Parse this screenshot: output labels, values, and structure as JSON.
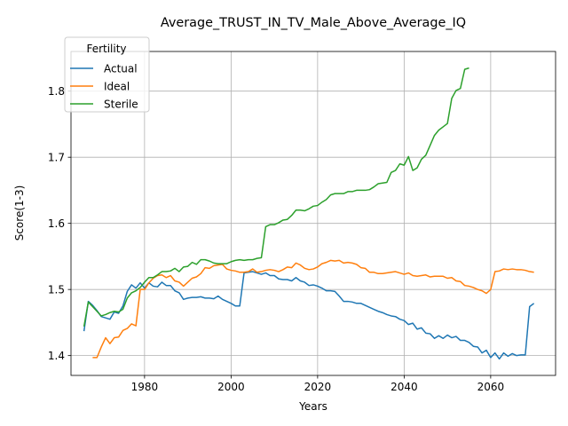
{
  "chart_data": {
    "type": "line",
    "title": "Average_TRUST_IN_TV_Male_Above_Average_IQ",
    "xlabel": "Years",
    "ylabel": "Score(1-3)",
    "xlim": [
      1963,
      2075
    ],
    "ylim": [
      1.37,
      1.86
    ],
    "x_ticks": [
      1980,
      2000,
      2020,
      2040,
      2060
    ],
    "y_ticks": [
      1.4,
      1.5,
      1.6,
      1.7,
      1.8
    ],
    "grid": true,
    "legend": {
      "title": "Fertility",
      "placement": "top-left"
    },
    "series": [
      {
        "name": "Actual",
        "color": "#1f77b4",
        "points": [
          [
            1966,
            1.437
          ],
          [
            1967,
            1.482
          ],
          [
            1968,
            1.476
          ],
          [
            1969,
            1.468
          ],
          [
            1970,
            1.459
          ],
          [
            1971,
            1.457
          ],
          [
            1972,
            1.455
          ],
          [
            1973,
            1.466
          ],
          [
            1974,
            1.464
          ],
          [
            1975,
            1.475
          ],
          [
            1976,
            1.497
          ],
          [
            1977,
            1.507
          ],
          [
            1978,
            1.502
          ],
          [
            1979,
            1.51
          ],
          [
            1980,
            1.502
          ],
          [
            1981,
            1.51
          ],
          [
            1982,
            1.505
          ],
          [
            1983,
            1.504
          ],
          [
            1984,
            1.511
          ],
          [
            1985,
            1.506
          ],
          [
            1986,
            1.506
          ],
          [
            1987,
            1.498
          ],
          [
            1988,
            1.495
          ],
          [
            1989,
            1.485
          ],
          [
            1990,
            1.487
          ],
          [
            1991,
            1.488
          ],
          [
            1992,
            1.488
          ],
          [
            1993,
            1.489
          ],
          [
            1994,
            1.487
          ],
          [
            1995,
            1.487
          ],
          [
            1996,
            1.486
          ],
          [
            1997,
            1.49
          ],
          [
            1998,
            1.485
          ],
          [
            1999,
            1.482
          ],
          [
            2000,
            1.479
          ],
          [
            2001,
            1.475
          ],
          [
            2002,
            1.475
          ],
          [
            2003,
            1.525
          ],
          [
            2004,
            1.526
          ],
          [
            2005,
            1.527
          ],
          [
            2006,
            1.525
          ],
          [
            2007,
            1.523
          ],
          [
            2008,
            1.525
          ],
          [
            2009,
            1.521
          ],
          [
            2010,
            1.521
          ],
          [
            2011,
            1.516
          ],
          [
            2012,
            1.515
          ],
          [
            2013,
            1.515
          ],
          [
            2014,
            1.513
          ],
          [
            2015,
            1.518
          ],
          [
            2016,
            1.513
          ],
          [
            2017,
            1.511
          ],
          [
            2018,
            1.506
          ],
          [
            2019,
            1.507
          ],
          [
            2020,
            1.505
          ],
          [
            2021,
            1.502
          ],
          [
            2022,
            1.498
          ],
          [
            2023,
            1.498
          ],
          [
            2024,
            1.497
          ],
          [
            2025,
            1.49
          ],
          [
            2026,
            1.482
          ],
          [
            2027,
            1.482
          ],
          [
            2028,
            1.481
          ],
          [
            2029,
            1.479
          ],
          [
            2030,
            1.479
          ],
          [
            2031,
            1.476
          ],
          [
            2032,
            1.473
          ],
          [
            2033,
            1.47
          ],
          [
            2034,
            1.467
          ],
          [
            2035,
            1.465
          ],
          [
            2036,
            1.462
          ],
          [
            2037,
            1.46
          ],
          [
            2038,
            1.459
          ],
          [
            2039,
            1.455
          ],
          [
            2040,
            1.453
          ],
          [
            2041,
            1.447
          ],
          [
            2042,
            1.449
          ],
          [
            2043,
            1.44
          ],
          [
            2044,
            1.442
          ],
          [
            2045,
            1.434
          ],
          [
            2046,
            1.433
          ],
          [
            2047,
            1.426
          ],
          [
            2048,
            1.43
          ],
          [
            2049,
            1.426
          ],
          [
            2050,
            1.431
          ],
          [
            2051,
            1.427
          ],
          [
            2052,
            1.429
          ],
          [
            2053,
            1.423
          ],
          [
            2054,
            1.423
          ],
          [
            2055,
            1.42
          ],
          [
            2056,
            1.414
          ],
          [
            2057,
            1.413
          ],
          [
            2058,
            1.404
          ],
          [
            2059,
            1.408
          ],
          [
            2060,
            1.397
          ],
          [
            2061,
            1.404
          ],
          [
            2062,
            1.395
          ],
          [
            2063,
            1.404
          ],
          [
            2064,
            1.399
          ],
          [
            2065,
            1.403
          ],
          [
            2066,
            1.4
          ],
          [
            2067,
            1.401
          ],
          [
            2068,
            1.401
          ],
          [
            2069,
            1.474
          ],
          [
            2070,
            1.479
          ]
        ]
      },
      {
        "name": "Ideal",
        "color": "#ff7f0e",
        "points": [
          [
            1968,
            1.397
          ],
          [
            1969,
            1.397
          ],
          [
            1970,
            1.413
          ],
          [
            1971,
            1.427
          ],
          [
            1972,
            1.418
          ],
          [
            1973,
            1.427
          ],
          [
            1974,
            1.428
          ],
          [
            1975,
            1.438
          ],
          [
            1976,
            1.441
          ],
          [
            1977,
            1.448
          ],
          [
            1978,
            1.445
          ],
          [
            1979,
            1.5
          ],
          [
            1980,
            1.5
          ],
          [
            1981,
            1.51
          ],
          [
            1982,
            1.517
          ],
          [
            1983,
            1.521
          ],
          [
            1984,
            1.522
          ],
          [
            1985,
            1.518
          ],
          [
            1986,
            1.521
          ],
          [
            1987,
            1.513
          ],
          [
            1988,
            1.511
          ],
          [
            1989,
            1.505
          ],
          [
            1990,
            1.511
          ],
          [
            1991,
            1.517
          ],
          [
            1992,
            1.519
          ],
          [
            1993,
            1.524
          ],
          [
            1994,
            1.533
          ],
          [
            1995,
            1.532
          ],
          [
            1996,
            1.536
          ],
          [
            1997,
            1.537
          ],
          [
            1998,
            1.538
          ],
          [
            1999,
            1.531
          ],
          [
            2000,
            1.529
          ],
          [
            2001,
            1.528
          ],
          [
            2002,
            1.526
          ],
          [
            2003,
            1.526
          ],
          [
            2004,
            1.527
          ],
          [
            2005,
            1.531
          ],
          [
            2006,
            1.526
          ],
          [
            2007,
            1.527
          ],
          [
            2008,
            1.529
          ],
          [
            2009,
            1.53
          ],
          [
            2010,
            1.529
          ],
          [
            2011,
            1.527
          ],
          [
            2012,
            1.53
          ],
          [
            2013,
            1.534
          ],
          [
            2014,
            1.533
          ],
          [
            2015,
            1.54
          ],
          [
            2016,
            1.537
          ],
          [
            2017,
            1.532
          ],
          [
            2018,
            1.53
          ],
          [
            2019,
            1.531
          ],
          [
            2020,
            1.534
          ],
          [
            2021,
            1.539
          ],
          [
            2022,
            1.541
          ],
          [
            2023,
            1.544
          ],
          [
            2024,
            1.543
          ],
          [
            2025,
            1.544
          ],
          [
            2026,
            1.54
          ],
          [
            2027,
            1.541
          ],
          [
            2028,
            1.54
          ],
          [
            2029,
            1.538
          ],
          [
            2030,
            1.533
          ],
          [
            2031,
            1.532
          ],
          [
            2032,
            1.526
          ],
          [
            2033,
            1.526
          ],
          [
            2034,
            1.524
          ],
          [
            2035,
            1.524
          ],
          [
            2036,
            1.525
          ],
          [
            2037,
            1.526
          ],
          [
            2038,
            1.527
          ],
          [
            2039,
            1.525
          ],
          [
            2040,
            1.523
          ],
          [
            2041,
            1.525
          ],
          [
            2042,
            1.521
          ],
          [
            2043,
            1.52
          ],
          [
            2044,
            1.521
          ],
          [
            2045,
            1.522
          ],
          [
            2046,
            1.519
          ],
          [
            2047,
            1.52
          ],
          [
            2048,
            1.52
          ],
          [
            2049,
            1.52
          ],
          [
            2050,
            1.517
          ],
          [
            2051,
            1.518
          ],
          [
            2052,
            1.513
          ],
          [
            2053,
            1.512
          ],
          [
            2054,
            1.506
          ],
          [
            2055,
            1.505
          ],
          [
            2056,
            1.503
          ],
          [
            2057,
            1.5
          ],
          [
            2058,
            1.498
          ],
          [
            2059,
            1.494
          ],
          [
            2060,
            1.5
          ],
          [
            2061,
            1.527
          ],
          [
            2062,
            1.528
          ],
          [
            2063,
            1.531
          ],
          [
            2064,
            1.53
          ],
          [
            2065,
            1.531
          ],
          [
            2066,
            1.53
          ],
          [
            2067,
            1.53
          ],
          [
            2068,
            1.529
          ],
          [
            2069,
            1.527
          ],
          [
            2070,
            1.526
          ]
        ]
      },
      {
        "name": "Sterile",
        "color": "#2ca02c",
        "points": [
          [
            1966,
            1.444
          ],
          [
            1967,
            1.481
          ],
          [
            1968,
            1.474
          ],
          [
            1969,
            1.467
          ],
          [
            1970,
            1.46
          ],
          [
            1971,
            1.462
          ],
          [
            1972,
            1.465
          ],
          [
            1973,
            1.467
          ],
          [
            1974,
            1.466
          ],
          [
            1975,
            1.47
          ],
          [
            1976,
            1.487
          ],
          [
            1977,
            1.495
          ],
          [
            1978,
            1.498
          ],
          [
            1979,
            1.503
          ],
          [
            1980,
            1.511
          ],
          [
            1981,
            1.518
          ],
          [
            1982,
            1.518
          ],
          [
            1983,
            1.522
          ],
          [
            1984,
            1.527
          ],
          [
            1985,
            1.527
          ],
          [
            1986,
            1.528
          ],
          [
            1987,
            1.532
          ],
          [
            1988,
            1.527
          ],
          [
            1989,
            1.534
          ],
          [
            1990,
            1.535
          ],
          [
            1991,
            1.541
          ],
          [
            1992,
            1.538
          ],
          [
            1993,
            1.545
          ],
          [
            1994,
            1.545
          ],
          [
            1995,
            1.543
          ],
          [
            1996,
            1.54
          ],
          [
            1997,
            1.539
          ],
          [
            1998,
            1.539
          ],
          [
            1999,
            1.539
          ],
          [
            2000,
            1.542
          ],
          [
            2001,
            1.544
          ],
          [
            2002,
            1.545
          ],
          [
            2003,
            1.544
          ],
          [
            2004,
            1.545
          ],
          [
            2005,
            1.545
          ],
          [
            2006,
            1.547
          ],
          [
            2007,
            1.548
          ],
          [
            2008,
            1.595
          ],
          [
            2009,
            1.598
          ],
          [
            2010,
            1.598
          ],
          [
            2011,
            1.601
          ],
          [
            2012,
            1.605
          ],
          [
            2013,
            1.606
          ],
          [
            2014,
            1.612
          ],
          [
            2015,
            1.62
          ],
          [
            2016,
            1.62
          ],
          [
            2017,
            1.619
          ],
          [
            2018,
            1.622
          ],
          [
            2019,
            1.626
          ],
          [
            2020,
            1.627
          ],
          [
            2021,
            1.632
          ],
          [
            2022,
            1.636
          ],
          [
            2023,
            1.643
          ],
          [
            2024,
            1.645
          ],
          [
            2025,
            1.645
          ],
          [
            2026,
            1.645
          ],
          [
            2027,
            1.648
          ],
          [
            2028,
            1.648
          ],
          [
            2029,
            1.65
          ],
          [
            2030,
            1.65
          ],
          [
            2031,
            1.65
          ],
          [
            2032,
            1.651
          ],
          [
            2033,
            1.655
          ],
          [
            2034,
            1.66
          ],
          [
            2035,
            1.661
          ],
          [
            2036,
            1.662
          ],
          [
            2037,
            1.677
          ],
          [
            2038,
            1.68
          ],
          [
            2039,
            1.69
          ],
          [
            2040,
            1.688
          ],
          [
            2041,
            1.701
          ],
          [
            2042,
            1.68
          ],
          [
            2043,
            1.684
          ],
          [
            2044,
            1.697
          ],
          [
            2045,
            1.703
          ],
          [
            2046,
            1.718
          ],
          [
            2047,
            1.733
          ],
          [
            2048,
            1.741
          ],
          [
            2049,
            1.746
          ],
          [
            2050,
            1.751
          ],
          [
            2051,
            1.789
          ],
          [
            2052,
            1.801
          ],
          [
            2053,
            1.804
          ],
          [
            2054,
            1.833
          ],
          [
            2055,
            1.835
          ]
        ]
      }
    ]
  }
}
